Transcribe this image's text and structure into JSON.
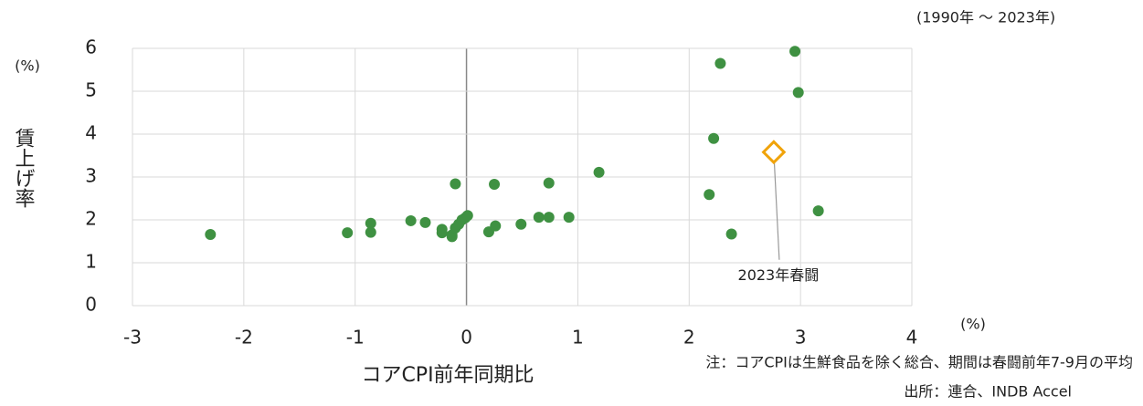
{
  "chart_data": {
    "type": "scatter",
    "period": "(1990年 ～ 2023年)",
    "y_unit": "(%)",
    "x_unit": "(%)",
    "ylabel": "賃上げ率",
    "xlabel": "コアCPI前年同期比",
    "notes": [
      "注：コアCPIは生鮮食品を除く総合、期間は春闘前年7-9月の平均",
      "出所：連合、INDB Accel"
    ],
    "xlim": [
      -3,
      4
    ],
    "ylim": [
      0,
      6
    ],
    "xticks": [
      -3,
      -2,
      -1,
      0,
      1,
      2,
      3,
      4
    ],
    "yticks": [
      0,
      1,
      2,
      3,
      4,
      5,
      6
    ],
    "grid": true,
    "series": [
      {
        "color": "#3f9142",
        "x": [
          -2.3,
          -1.07,
          -0.86,
          -0.86,
          -0.5,
          -0.37,
          -0.22,
          -0.22,
          -0.13,
          -0.13,
          -0.1,
          -0.07,
          -0.04,
          -0.01,
          0.01,
          -0.1,
          0.2,
          0.26,
          0.25,
          0.49,
          0.65,
          0.74,
          0.74,
          0.92,
          1.19,
          2.18,
          2.22,
          2.28,
          2.38,
          2.95,
          2.98,
          3.16
        ],
        "values": [
          1.66,
          1.7,
          1.92,
          1.71,
          1.98,
          1.94,
          1.78,
          1.7,
          1.65,
          1.61,
          1.81,
          1.9,
          2.0,
          2.05,
          2.1,
          2.84,
          1.72,
          1.86,
          2.83,
          1.9,
          2.06,
          2.06,
          2.86,
          2.06,
          3.11,
          2.59,
          3.9,
          5.65,
          1.67,
          5.93,
          4.97,
          2.21
        ]
      }
    ],
    "highlight": {
      "color": "#f0a30a",
      "x": [
        2.76
      ],
      "values": [
        3.58
      ],
      "label": "2023年春闘"
    }
  }
}
